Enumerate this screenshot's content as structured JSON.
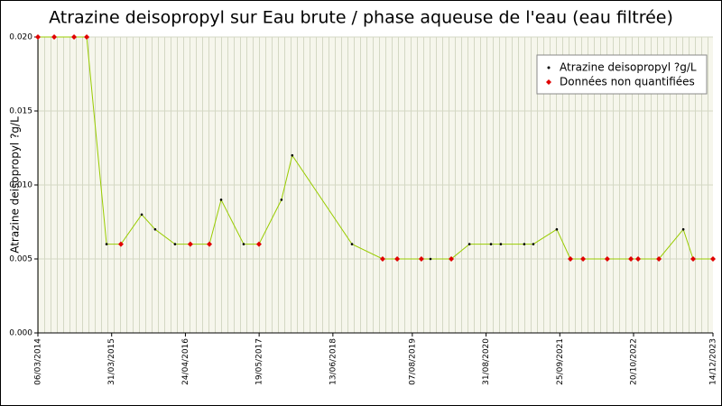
{
  "chart_data": {
    "type": "line",
    "title": "Atrazine deisopropyl sur Eau brute / phase aqueuse de l'eau (eau filtrée)",
    "y_label": "Atrazine deisopropyl ?g/L",
    "x": [
      "06/03/2014",
      "31/05/2014",
      "13/09/2014",
      "19/11/2014",
      "04/03/2015",
      "19/05/2015",
      "06/09/2015",
      "16/11/2015",
      "29/02/2016",
      "20/05/2016",
      "29/08/2016",
      "30/10/2016",
      "26/02/2017",
      "18/05/2017",
      "14/09/2017",
      "10/11/2017",
      "22/09/2018",
      "03/03/2019",
      "19/05/2019",
      "24/09/2019",
      "11/11/2019",
      "29/02/2020",
      "04/06/2020",
      "26/09/2020",
      "17/11/2020",
      "21/03/2021",
      "08/05/2021",
      "09/09/2021",
      "20/11/2021",
      "26/01/2022",
      "03/06/2022",
      "06/10/2022",
      "13/11/2022",
      "03/03/2023",
      "10/07/2023",
      "31/08/2023",
      "14/12/2023"
    ],
    "series": [
      {
        "name": "Atrazine deisopropyl ?g/L",
        "color": "#000000",
        "line_color": "#99cc00",
        "values": [
          0.02,
          0.02,
          0.02,
          0.02,
          0.006,
          0.006,
          0.008,
          0.007,
          0.006,
          0.006,
          0.006,
          0.009,
          0.006,
          0.006,
          0.009,
          0.012,
          0.006,
          0.005,
          0.005,
          0.005,
          0.005,
          0.005,
          0.006,
          0.006,
          0.006,
          0.006,
          0.006,
          0.007,
          0.005,
          0.005,
          0.005,
          0.005,
          0.005,
          0.005,
          0.007,
          0.005,
          0.005
        ]
      },
      {
        "name": "Données non quantifiées",
        "color": "#e00000",
        "values": [
          0.02,
          0.02,
          0.02,
          0.02,
          null,
          0.006,
          null,
          null,
          null,
          0.006,
          0.006,
          null,
          null,
          0.006,
          null,
          null,
          null,
          0.005,
          0.005,
          0.005,
          null,
          0.005,
          null,
          null,
          null,
          null,
          null,
          null,
          0.005,
          0.005,
          0.005,
          0.005,
          0.005,
          0.005,
          null,
          0.005,
          0.005
        ]
      }
    ],
    "xlim": [
      "06/03/2014",
      "14/12/2023"
    ],
    "xticks": [
      "06/03/2014",
      "31/03/2015",
      "24/04/2016",
      "19/05/2017",
      "13/06/2018",
      "07/08/2019",
      "31/08/2020",
      "25/09/2021",
      "20/10/2022",
      "14/12/2023"
    ],
    "ylim": [
      0,
      0.02
    ],
    "yticks": [
      {
        "value": 0,
        "label": "0.000"
      },
      {
        "value": 0.005,
        "label": "0.005"
      },
      {
        "value": 0.01,
        "label": "0.010"
      },
      {
        "value": 0.015,
        "label": "0.015"
      },
      {
        "value": 0.02,
        "label": "0.020"
      }
    ],
    "grid": true,
    "legend": "upper right"
  }
}
